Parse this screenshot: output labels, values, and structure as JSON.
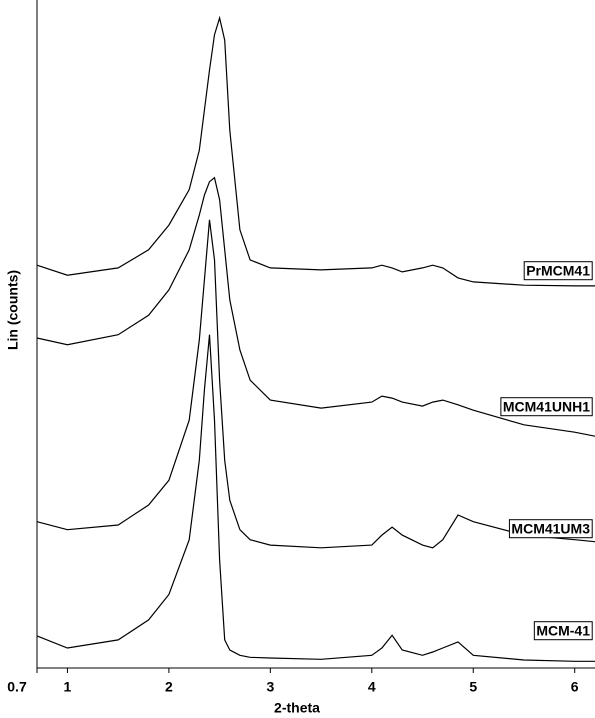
{
  "chart_data": {
    "type": "line",
    "xlabel": "2-theta",
    "ylabel": "Lin (counts)",
    "x": [
      0.7,
      1,
      1.5,
      1.8,
      2,
      2.2,
      2.3,
      2.35,
      2.4,
      2.45,
      2.5,
      2.55,
      2.6,
      2.7,
      2.8,
      3,
      3.5,
      4,
      4.1,
      4.2,
      4.3,
      4.5,
      4.6,
      4.7,
      4.85,
      5,
      5.5,
      6,
      6.2
    ],
    "series": [
      {
        "name": "PrMCM41",
        "color": "#000000",
        "values": [
          60.3,
          58.8,
          59.9,
          62.6,
          66.3,
          71.6,
          77.5,
          83.5,
          89.5,
          94.8,
          97.3,
          94.0,
          80.5,
          65.6,
          61.1,
          59.9,
          59.6,
          59.9,
          60.3,
          59.9,
          59.3,
          59.9,
          60.3,
          59.9,
          58.4,
          57.8,
          57.3,
          57.2,
          57.2
        ]
      },
      {
        "name": "MCM41UNH1",
        "color": "#000000",
        "values": [
          49.4,
          48.4,
          49.9,
          52.8,
          56.6,
          62.6,
          67.8,
          70.8,
          72.8,
          73.4,
          70.1,
          62.6,
          55.1,
          47.6,
          43.1,
          40.1,
          38.9,
          39.8,
          40.7,
          40.4,
          39.8,
          39.2,
          39.8,
          40.1,
          39.4,
          38.6,
          36.4,
          35.3,
          34.7
        ]
      },
      {
        "name": "MCM41UM3",
        "color": "#000000",
        "values": [
          21.9,
          20.7,
          21.4,
          24.4,
          28.1,
          37.1,
          49.1,
          58.1,
          67.1,
          61.1,
          43.1,
          31.1,
          25.1,
          20.7,
          19.2,
          18.4,
          18.0,
          18.4,
          19.9,
          21.1,
          19.9,
          18.4,
          18.0,
          19.2,
          22.9,
          21.9,
          19.9,
          19.2,
          18.9
        ]
      },
      {
        "name": "MCM-41",
        "color": "#000000",
        "values": [
          4.8,
          3.0,
          4.2,
          7.2,
          11.0,
          19.2,
          31.1,
          41.6,
          49.9,
          37.1,
          16.2,
          4.2,
          2.7,
          1.9,
          1.6,
          1.5,
          1.3,
          1.9,
          3.0,
          4.9,
          2.7,
          1.9,
          2.4,
          3.0,
          3.9,
          1.9,
          1.2,
          1.0,
          1.0
        ]
      }
    ],
    "xlim": [
      0.7,
      6.2
    ],
    "xticks": [
      0.7,
      1,
      2,
      3,
      4,
      5,
      6
    ],
    "ylim": [
      0,
      100
    ]
  }
}
